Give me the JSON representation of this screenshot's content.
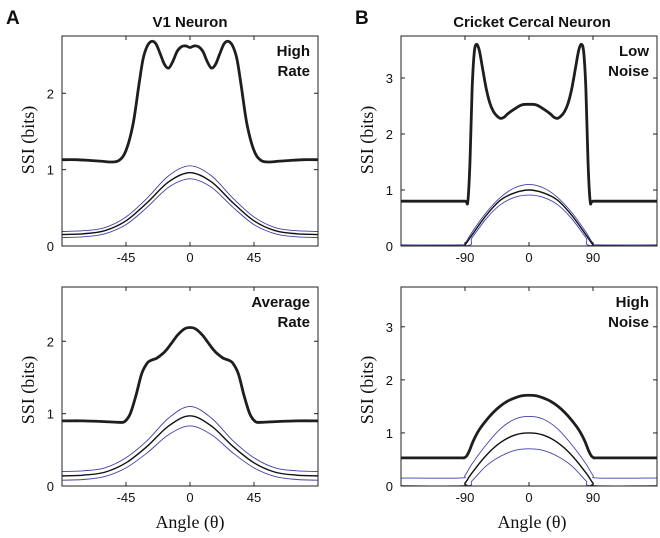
{
  "figure": {
    "panel_letters": [
      "A",
      "B"
    ],
    "column_titles": [
      "V1 Neuron",
      "Cricket Cercal Neuron"
    ],
    "ylabel": "SSI (bits)",
    "xlabel": "Angle (θ)"
  },
  "colors": {
    "thick": "#1e1e1e",
    "mean": "#111111",
    "band": "#4040a8"
  },
  "chart_data": [
    {
      "id": "v1-high-rate",
      "type": "line",
      "annotation": [
        "High",
        "Rate"
      ],
      "xlim": [
        -90,
        90
      ],
      "ylim": [
        0,
        2.75
      ],
      "xticks": [
        -45,
        0,
        45
      ],
      "yticks": [
        0,
        1,
        2
      ],
      "xtick_labels": [
        "-45",
        "0",
        "45"
      ],
      "ytick_labels": [
        "0",
        "1",
        "2"
      ],
      "series": [
        {
          "role": "thick",
          "x": [
            -90,
            -80,
            -70,
            -62,
            -56,
            -50,
            -45,
            -40,
            -36,
            -33,
            -30,
            -27,
            -24,
            -21,
            -18,
            -15,
            -12,
            -9,
            -6,
            -3,
            0,
            3,
            6,
            9,
            12,
            15,
            18,
            21,
            24,
            27,
            30,
            33,
            36,
            40,
            45,
            50,
            56,
            62,
            70,
            80,
            90
          ],
          "y": [
            1.13,
            1.13,
            1.12,
            1.11,
            1.1,
            1.12,
            1.25,
            1.6,
            2.1,
            2.45,
            2.62,
            2.68,
            2.65,
            2.52,
            2.38,
            2.33,
            2.42,
            2.55,
            2.61,
            2.62,
            2.6,
            2.62,
            2.61,
            2.55,
            2.42,
            2.33,
            2.38,
            2.52,
            2.65,
            2.68,
            2.62,
            2.45,
            2.1,
            1.6,
            1.25,
            1.12,
            1.1,
            1.11,
            1.12,
            1.13,
            1.13
          ]
        },
        {
          "role": "band",
          "x": [
            -90,
            -75,
            -60,
            -45,
            -30,
            -15,
            0,
            15,
            30,
            45,
            60,
            75,
            90
          ],
          "y": [
            0.19,
            0.2,
            0.24,
            0.38,
            0.63,
            0.92,
            1.05,
            0.92,
            0.63,
            0.38,
            0.24,
            0.2,
            0.19
          ]
        },
        {
          "role": "mean",
          "x": [
            -90,
            -75,
            -60,
            -45,
            -30,
            -15,
            0,
            15,
            30,
            45,
            60,
            75,
            90
          ],
          "y": [
            0.15,
            0.16,
            0.2,
            0.33,
            0.57,
            0.84,
            0.96,
            0.84,
            0.57,
            0.33,
            0.2,
            0.16,
            0.15
          ]
        },
        {
          "role": "band",
          "x": [
            -90,
            -75,
            -60,
            -45,
            -30,
            -15,
            0,
            15,
            30,
            45,
            60,
            75,
            90
          ],
          "y": [
            0.11,
            0.12,
            0.16,
            0.28,
            0.51,
            0.77,
            0.88,
            0.77,
            0.51,
            0.28,
            0.16,
            0.12,
            0.11
          ]
        }
      ]
    },
    {
      "id": "cercal-low-noise",
      "type": "line",
      "annotation": [
        "Low",
        "Noise"
      ],
      "xlim": [
        -180,
        180
      ],
      "ylim": [
        0,
        3.75
      ],
      "xticks": [
        -90,
        0,
        90
      ],
      "yticks": [
        0,
        1,
        2,
        3
      ],
      "xtick_labels": [
        "-90",
        "0",
        "90"
      ],
      "ytick_labels": [
        "0",
        "1",
        "2",
        "3"
      ],
      "series": [
        {
          "role": "thick",
          "x": [
            -180,
            -110,
            -90,
            -86,
            -83,
            -80,
            -77,
            -74,
            -70,
            -65,
            -60,
            -55,
            -50,
            -45,
            -40,
            -35,
            -30,
            -20,
            -10,
            0,
            10,
            20,
            30,
            35,
            40,
            45,
            50,
            55,
            60,
            65,
            70,
            74,
            77,
            80,
            83,
            86,
            90,
            110,
            180
          ],
          "y": [
            0.8,
            0.8,
            0.8,
            0.8,
            1.5,
            2.8,
            3.45,
            3.6,
            3.5,
            3.15,
            2.8,
            2.55,
            2.4,
            2.32,
            2.28,
            2.3,
            2.36,
            2.45,
            2.52,
            2.53,
            2.52,
            2.45,
            2.36,
            2.3,
            2.28,
            2.32,
            2.4,
            2.55,
            2.8,
            3.15,
            3.5,
            3.6,
            3.45,
            2.8,
            1.5,
            0.8,
            0.8,
            0.8,
            0.8
          ]
        },
        {
          "role": "band",
          "x": [
            -180,
            -98,
            -90,
            -80,
            -60,
            -40,
            -20,
            0,
            20,
            40,
            60,
            80,
            90,
            98,
            180
          ],
          "y": [
            0.02,
            0.02,
            0.05,
            0.25,
            0.6,
            0.87,
            1.04,
            1.1,
            1.04,
            0.87,
            0.6,
            0.25,
            0.05,
            0.02,
            0.02
          ]
        },
        {
          "role": "mean",
          "x": [
            -180,
            -94,
            -90,
            -80,
            -60,
            -40,
            -20,
            0,
            20,
            40,
            60,
            80,
            90,
            94,
            180
          ],
          "y": [
            0.0,
            0.0,
            0.02,
            0.2,
            0.55,
            0.82,
            0.95,
            1.0,
            0.95,
            0.82,
            0.55,
            0.2,
            0.02,
            0.0,
            0.0
          ]
        },
        {
          "role": "band",
          "x": [
            -180,
            -90,
            -80,
            -60,
            -40,
            -20,
            0,
            20,
            40,
            60,
            80,
            90,
            180
          ],
          "y": [
            0.0,
            0.0,
            0.15,
            0.49,
            0.74,
            0.87,
            0.91,
            0.87,
            0.74,
            0.49,
            0.15,
            0.0,
            0.0
          ]
        }
      ]
    },
    {
      "id": "v1-average-rate",
      "type": "line",
      "annotation": [
        "Average",
        "Rate"
      ],
      "xlim": [
        -90,
        90
      ],
      "ylim": [
        0,
        2.75
      ],
      "xticks": [
        -45,
        0,
        45
      ],
      "yticks": [
        0,
        1,
        2
      ],
      "xtick_labels": [
        "-45",
        "0",
        "45"
      ],
      "ytick_labels": [
        "0",
        "1",
        "2"
      ],
      "series": [
        {
          "role": "thick",
          "x": [
            -90,
            -75,
            -60,
            -50,
            -46,
            -42,
            -38,
            -34,
            -30,
            -27,
            -24,
            -21,
            -18,
            -15,
            -12,
            -9,
            -6,
            -3,
            0,
            3,
            6,
            9,
            12,
            15,
            18,
            21,
            24,
            27,
            30,
            34,
            38,
            42,
            46,
            50,
            60,
            75,
            90
          ],
          "y": [
            0.9,
            0.9,
            0.89,
            0.88,
            0.89,
            1.0,
            1.25,
            1.55,
            1.7,
            1.74,
            1.76,
            1.8,
            1.85,
            1.92,
            2.0,
            2.08,
            2.14,
            2.18,
            2.19,
            2.18,
            2.14,
            2.08,
            2.0,
            1.92,
            1.85,
            1.8,
            1.76,
            1.74,
            1.7,
            1.55,
            1.25,
            1.0,
            0.89,
            0.88,
            0.89,
            0.9,
            0.9
          ]
        },
        {
          "role": "band",
          "x": [
            -90,
            -75,
            -60,
            -45,
            -30,
            -15,
            0,
            15,
            30,
            45,
            60,
            75,
            90
          ],
          "y": [
            0.2,
            0.21,
            0.25,
            0.39,
            0.63,
            0.94,
            1.1,
            0.94,
            0.63,
            0.39,
            0.25,
            0.21,
            0.2
          ]
        },
        {
          "role": "mean",
          "x": [
            -90,
            -75,
            -60,
            -45,
            -30,
            -15,
            0,
            15,
            30,
            45,
            60,
            75,
            90
          ],
          "y": [
            0.14,
            0.15,
            0.19,
            0.32,
            0.55,
            0.83,
            0.97,
            0.83,
            0.55,
            0.32,
            0.19,
            0.15,
            0.14
          ]
        },
        {
          "role": "band",
          "x": [
            -90,
            -75,
            -60,
            -45,
            -30,
            -15,
            0,
            15,
            30,
            45,
            60,
            75,
            90
          ],
          "y": [
            0.08,
            0.09,
            0.13,
            0.25,
            0.46,
            0.71,
            0.83,
            0.71,
            0.46,
            0.25,
            0.13,
            0.09,
            0.08
          ]
        }
      ]
    },
    {
      "id": "cercal-high-noise",
      "type": "line",
      "annotation": [
        "High",
        "Noise"
      ],
      "xlim": [
        -180,
        180
      ],
      "ylim": [
        0,
        3.75
      ],
      "xticks": [
        -90,
        0,
        90
      ],
      "yticks": [
        0,
        1,
        2,
        3
      ],
      "xtick_labels": [
        "-90",
        "0",
        "90"
      ],
      "ytick_labels": [
        "0",
        "1",
        "2",
        "3"
      ],
      "series": [
        {
          "role": "thick",
          "x": [
            -180,
            -100,
            -92,
            -88,
            -84,
            -78,
            -70,
            -60,
            -50,
            -40,
            -30,
            -20,
            -10,
            0,
            10,
            20,
            30,
            40,
            50,
            60,
            70,
            78,
            84,
            88,
            92,
            100,
            180
          ],
          "y": [
            0.53,
            0.53,
            0.53,
            0.56,
            0.66,
            0.86,
            1.06,
            1.24,
            1.39,
            1.51,
            1.6,
            1.66,
            1.7,
            1.71,
            1.7,
            1.66,
            1.6,
            1.51,
            1.39,
            1.24,
            1.06,
            0.86,
            0.66,
            0.56,
            0.53,
            0.53,
            0.53
          ]
        },
        {
          "role": "band",
          "x": [
            -180,
            -98,
            -90,
            -80,
            -60,
            -40,
            -20,
            0,
            20,
            40,
            60,
            80,
            90,
            98,
            180
          ],
          "y": [
            0.15,
            0.15,
            0.2,
            0.42,
            0.78,
            1.08,
            1.26,
            1.31,
            1.26,
            1.08,
            0.78,
            0.42,
            0.2,
            0.15,
            0.15
          ]
        },
        {
          "role": "mean",
          "x": [
            -180,
            -94,
            -90,
            -80,
            -60,
            -40,
            -20,
            0,
            20,
            40,
            60,
            80,
            90,
            94,
            180
          ],
          "y": [
            0.0,
            0.0,
            0.05,
            0.25,
            0.58,
            0.82,
            0.96,
            1.0,
            0.96,
            0.82,
            0.58,
            0.25,
            0.05,
            0.0,
            0.0
          ]
        },
        {
          "role": "band",
          "x": [
            -180,
            -90,
            -80,
            -60,
            -40,
            -20,
            0,
            20,
            40,
            60,
            80,
            90,
            180
          ],
          "y": [
            0.0,
            0.0,
            0.1,
            0.38,
            0.56,
            0.67,
            0.7,
            0.67,
            0.56,
            0.38,
            0.1,
            0.0,
            0.0
          ]
        }
      ]
    }
  ]
}
